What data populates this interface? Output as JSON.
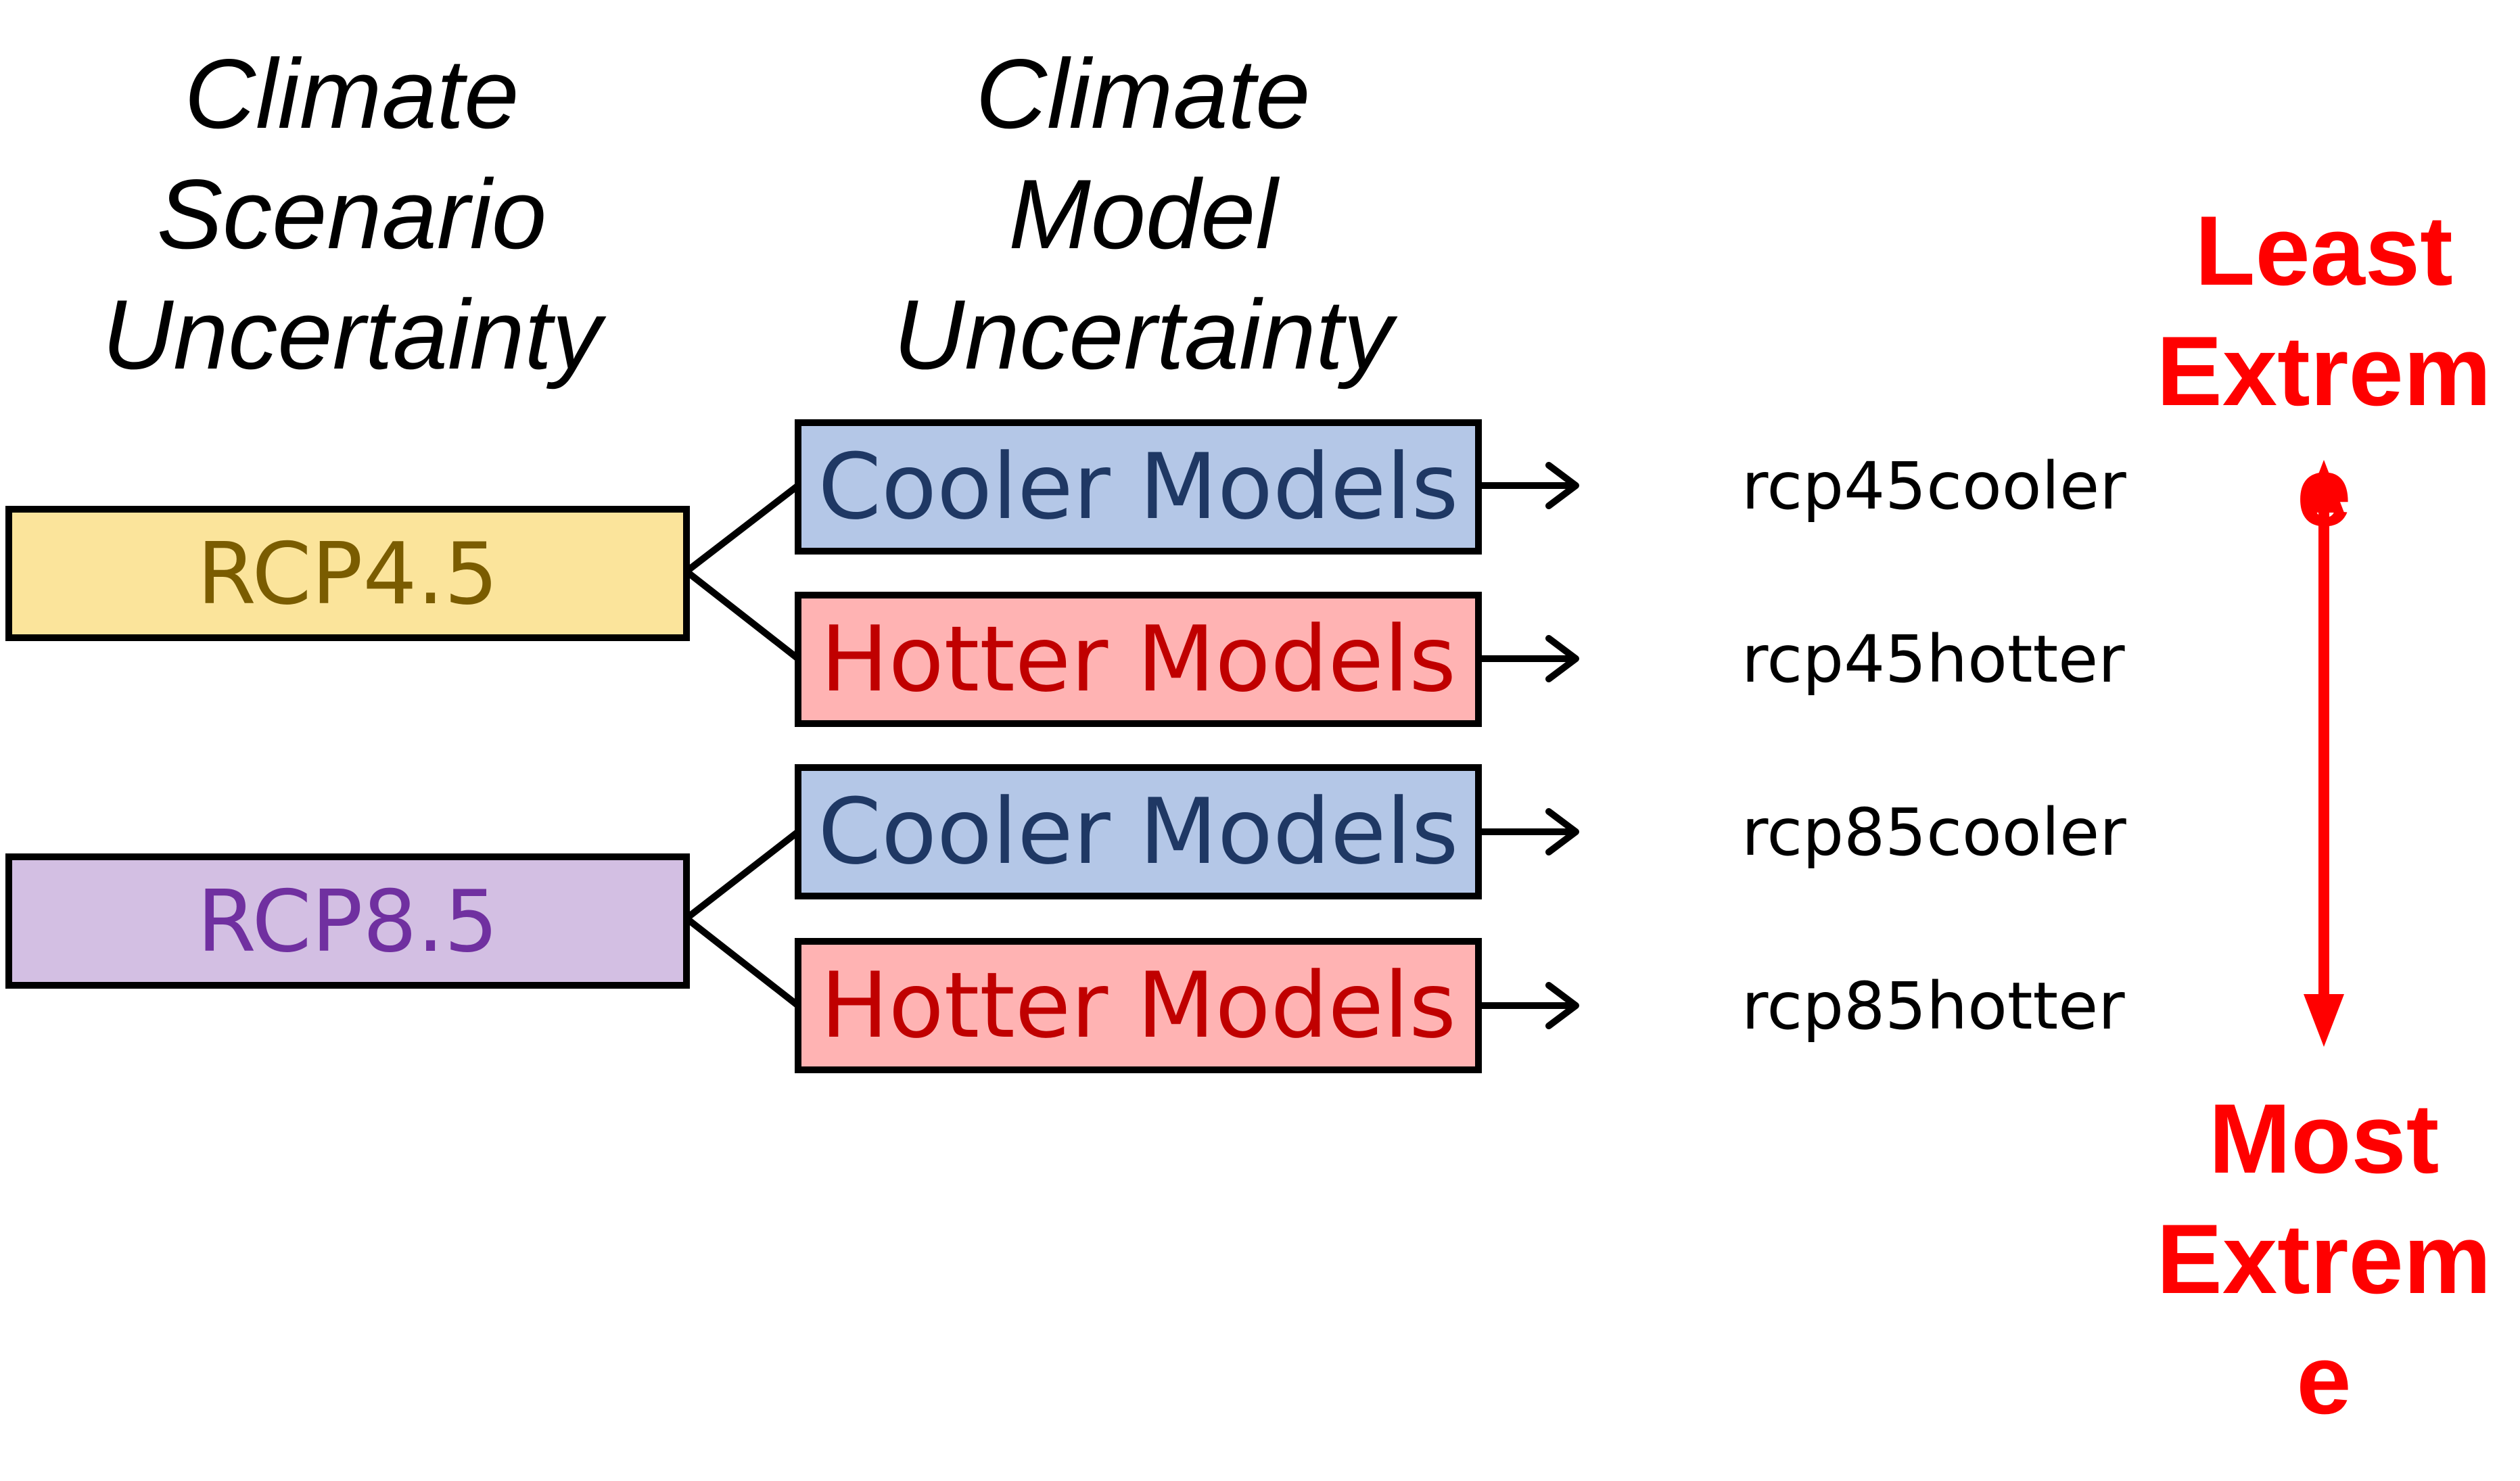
{
  "headers": {
    "scenario": [
      "Climate",
      "Scenario",
      "Uncertainty"
    ],
    "model": [
      "Climate",
      "Model",
      "Uncertainty"
    ]
  },
  "scenarios": [
    {
      "label": "RCP4.5",
      "fill": "#fbe49b",
      "text_color": "#7a5c00"
    },
    {
      "label": "RCP8.5",
      "fill": "#d3bfe3",
      "text_color": "#7030a0"
    }
  ],
  "models": [
    {
      "label": "Cooler Models",
      "fill": "#b4c7e7",
      "text_color": "#1f3864"
    },
    {
      "label": "Hotter Models",
      "fill": "#ffb3b3",
      "text_color": "#c00000"
    },
    {
      "label": "Cooler Models",
      "fill": "#b4c7e7",
      "text_color": "#1f3864"
    },
    {
      "label": "Hotter Models",
      "fill": "#ffb3b3",
      "text_color": "#c00000"
    }
  ],
  "results": [
    "rcp45cooler",
    "rcp45hotter",
    "rcp85cooler",
    "rcp85hotter"
  ],
  "scale": {
    "top": [
      "Least",
      "Extrem",
      "e"
    ],
    "bottom": [
      "Most",
      "Extrem",
      "e"
    ],
    "color": "#ff0000"
  }
}
